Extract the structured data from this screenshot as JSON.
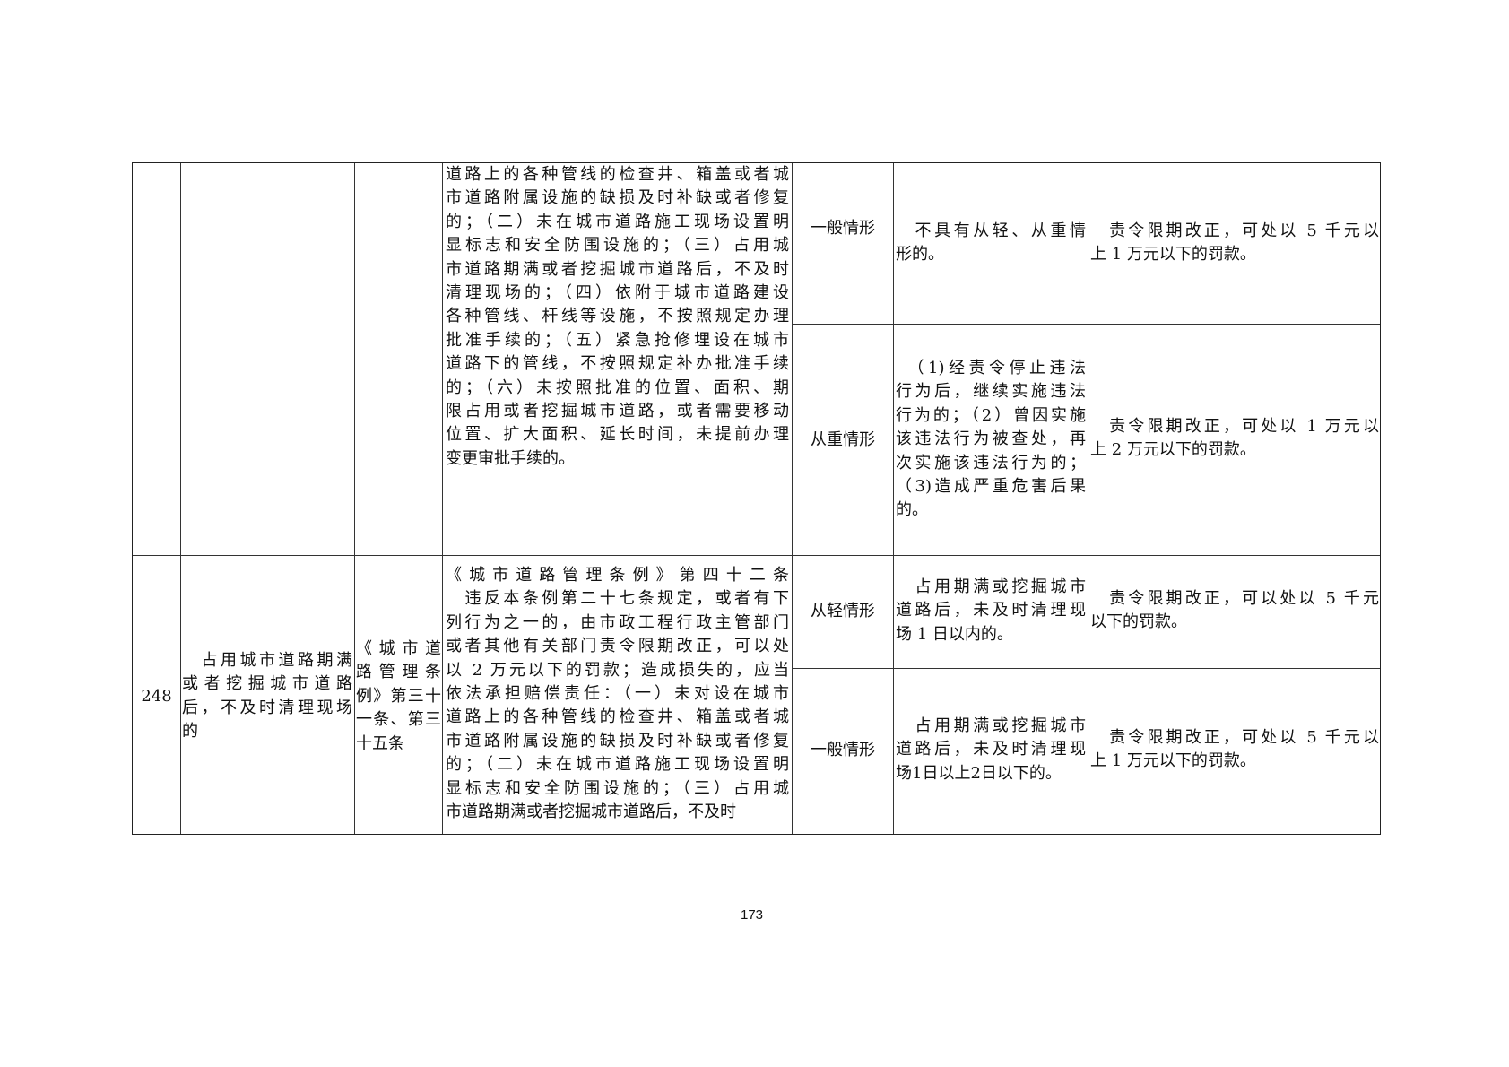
{
  "table": {
    "row_continued": {
      "basis_text_lines": [
        "道路上的各种管线的检查井、箱盖或者城",
        "市道路附属设施的缺损及时补缺或者修复",
        "的；（二）未在城市道路施工现场设置明",
        "显标志和安全防围设施的；（三）占用城",
        "市道路期满或者挖掘城市道路后，不及时",
        "清理现场的；（四）依附于城市道路建设",
        "各种管线、杆线等设施，不按照规定办理",
        "批准手续的；（五）紧急抢修埋设在城市",
        "道路下的管线，不按照规定补办批准手续",
        "的；（六）未按照批准的位置、面积、期",
        "限占用或者挖掘城市道路，或者需要移动",
        "位置、扩大面积、延长时间，未提前办理",
        "变更审批手续的。"
      ],
      "levels": [
        {
          "level": "一般情形",
          "condition_lines": [
            "　不具有从轻、从重情",
            "形的。"
          ],
          "penalty_lines": [
            "　责令限期改正，可处以 5 千元以",
            "上 1 万元以下的罚款。"
          ]
        },
        {
          "level": "从重情形",
          "condition_lines": [
            "　（1)经责令停止违法",
            "行为后，继续实施违法",
            "行为的；（2）曾因实施",
            "该违法行为被查处，再",
            "次实施该违法行为的；",
            "（3)造成严重危害后果",
            "的。"
          ],
          "penalty_lines": [
            "　责令限期改正，可处以 1 万元以",
            "上 2 万元以下的罚款。"
          ]
        }
      ]
    },
    "row_248": {
      "number": "248",
      "violation_lines": [
        "　占用城市道路期满",
        "或者挖掘城市道路",
        "后，不及时清理现场",
        "的"
      ],
      "violated_clause_lines": [
        "《城市道",
        "路管理条",
        "例》第三十",
        "一条、第三",
        "十五条"
      ],
      "basis_text_lines": [
        "《城市道路管理条例》第四十二条",
        "　违反本条例第二十七条规定，或者有下",
        "列行为之一的，由市政工程行政主管部门",
        "或者其他有关部门责令限期改正，可以处",
        "以 2 万元以下的罚款；造成损失的，应当",
        "依法承担赔偿责任：（一）未对设在城市",
        "道路上的各种管线的检查井、箱盖或者城",
        "市道路附属设施的缺损及时补缺或者修复",
        "的；（二）未在城市道路施工现场设置明",
        "显标志和安全防围设施的；（三）占用城",
        "市道路期满或者挖掘城市道路后，不及时"
      ],
      "levels": [
        {
          "level": "从轻情形",
          "condition_lines": [
            "　占用期满或挖掘城市",
            "道路后，未及时清理现",
            "场 1 日以内的。"
          ],
          "penalty_lines": [
            "　责令限期改正，可以处以 5 千元",
            "以下的罚款。"
          ]
        },
        {
          "level": "一般情形",
          "condition_lines": [
            "　占用期满或挖掘城市",
            "道路后，未及时清理现",
            "场1日以上2日以下的。"
          ],
          "penalty_lines": [
            "　责令限期改正，可处以 5 千元以",
            "上 1 万元以下的罚款。"
          ]
        }
      ]
    }
  },
  "page_number": "173"
}
